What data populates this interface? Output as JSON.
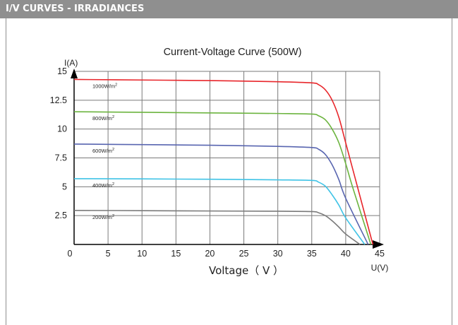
{
  "header": {
    "title": "I/V CURVES - IRRADIANCES"
  },
  "chart_data": {
    "type": "line",
    "title": "Current-Voltage  Curve (500W)",
    "xlabel": "Voltage（ V ）",
    "ylabel": "I(A)",
    "x_axis_end_label": "U(V)",
    "xlim": [
      0,
      45
    ],
    "ylim": [
      0,
      15
    ],
    "x_ticks": [
      "0",
      "5",
      "10",
      "15",
      "20",
      "25",
      "30",
      "35",
      "40",
      "45"
    ],
    "y_ticks": [
      "2.5",
      "5",
      "7.5",
      "10",
      "12.5",
      "15"
    ],
    "grid": true,
    "series": [
      {
        "name": "1000W/m²",
        "label_base": "1000W/m",
        "label_sup": "2",
        "color": "#e8262b",
        "x": [
          0,
          10,
          20,
          30,
          35,
          36,
          37,
          38,
          39,
          40,
          42,
          44
        ],
        "y": [
          14.3,
          14.25,
          14.2,
          14.1,
          14.0,
          13.85,
          13.4,
          12.5,
          11.0,
          8.8,
          4.4,
          0
        ]
      },
      {
        "name": "800W/m²",
        "label_base": "800W/m",
        "label_sup": "2",
        "color": "#6cb43f",
        "x": [
          0,
          10,
          20,
          30,
          35,
          36,
          37,
          38,
          39,
          40,
          41,
          43.7
        ],
        "y": [
          11.5,
          11.45,
          11.4,
          11.35,
          11.3,
          11.15,
          10.8,
          10.0,
          8.8,
          7.0,
          5.0,
          0
        ]
      },
      {
        "name": "600W/m²",
        "label_base": "600W/m",
        "label_sup": "2",
        "color": "#5865b0",
        "x": [
          0,
          10,
          20,
          30,
          35,
          36,
          37,
          38,
          39,
          40,
          43.3
        ],
        "y": [
          8.7,
          8.65,
          8.6,
          8.5,
          8.4,
          8.25,
          7.8,
          6.9,
          5.6,
          4.0,
          0
        ]
      },
      {
        "name": "400W/m²",
        "label_base": "400W/m",
        "label_sup": "2",
        "color": "#3fc3e6",
        "x": [
          0,
          10,
          20,
          30,
          35,
          36,
          37,
          38,
          39,
          40,
          42.8
        ],
        "y": [
          5.7,
          5.68,
          5.65,
          5.6,
          5.55,
          5.4,
          5.05,
          4.3,
          3.4,
          2.3,
          0
        ]
      },
      {
        "name": "200W/m²",
        "label_base": "200W/m",
        "label_sup": "2",
        "color": "#7a7a7a",
        "x": [
          0,
          10,
          20,
          30,
          35,
          36,
          37,
          38,
          39,
          40,
          42.1
        ],
        "y": [
          2.95,
          2.93,
          2.9,
          2.88,
          2.85,
          2.75,
          2.5,
          2.05,
          1.5,
          0.9,
          0
        ]
      }
    ]
  }
}
